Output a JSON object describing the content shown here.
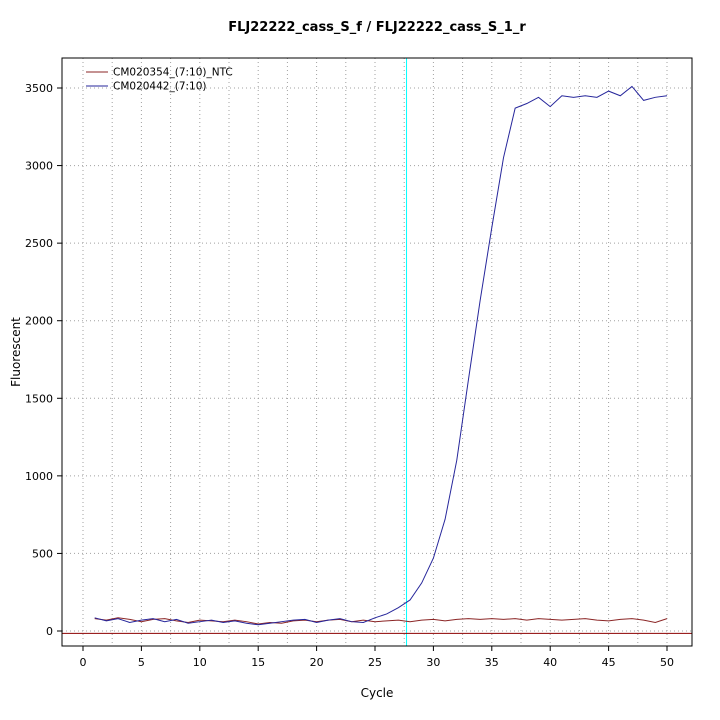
{
  "title": "FLJ22222_cass_S_f / FLJ22222_cass_S_1_r",
  "chart_data": {
    "type": "line",
    "title": "FLJ22222_cass_S_f / FLJ22222_cass_S_1_r",
    "xlabel": "Cycle",
    "ylabel": "Fluorescent",
    "x": [
      1,
      2,
      3,
      4,
      5,
      6,
      7,
      8,
      9,
      10,
      11,
      12,
      13,
      14,
      15,
      16,
      17,
      18,
      19,
      20,
      21,
      22,
      23,
      24,
      25,
      26,
      27,
      28,
      29,
      30,
      31,
      32,
      33,
      34,
      35,
      36,
      37,
      38,
      39,
      40,
      41,
      42,
      43,
      44,
      45,
      46,
      47,
      48,
      49,
      50
    ],
    "series": [
      {
        "name": "CM020354_(7:10)_NTC",
        "color": "#8b2525",
        "values": [
          80,
          70,
          85,
          75,
          60,
          75,
          80,
          65,
          55,
          70,
          65,
          60,
          70,
          60,
          45,
          55,
          50,
          65,
          70,
          60,
          70,
          75,
          60,
          70,
          60,
          65,
          70,
          60,
          70,
          75,
          65,
          75,
          80,
          75,
          80,
          75,
          80,
          70,
          80,
          75,
          70,
          75,
          80,
          70,
          65,
          75,
          80,
          70,
          55,
          80
        ]
      },
      {
        "name": "CM020442_(7:10)",
        "color": "#26269b",
        "values": [
          85,
          65,
          80,
          55,
          70,
          80,
          60,
          75,
          50,
          60,
          70,
          55,
          65,
          50,
          40,
          50,
          60,
          70,
          75,
          55,
          70,
          80,
          60,
          55,
          85,
          110,
          150,
          200,
          310,
          470,
          720,
          1100,
          1620,
          2130,
          2600,
          3050,
          3370,
          3400,
          3440,
          3380,
          3450,
          3440,
          3450,
          3440,
          3480,
          3450,
          3510,
          3420,
          3440,
          3450
        ]
      }
    ],
    "x_ticks": [
      0,
      5,
      10,
      15,
      20,
      25,
      30,
      35,
      40,
      45,
      50
    ],
    "y_ticks": [
      0,
      500,
      1000,
      1500,
      2000,
      2500,
      3000,
      3500
    ],
    "xlim": [
      -1.8,
      52.2
    ],
    "ylim": [
      -100,
      3700
    ],
    "grid": {
      "on": true,
      "x_interval": 2.5,
      "y_interval": 500,
      "color": "#a0a0a0"
    },
    "threshold_line": {
      "y": -15,
      "color": "#8b0000"
    },
    "crossing_line": {
      "x": 27.7,
      "color": "#00ffff"
    },
    "legend_position": "top-left"
  }
}
